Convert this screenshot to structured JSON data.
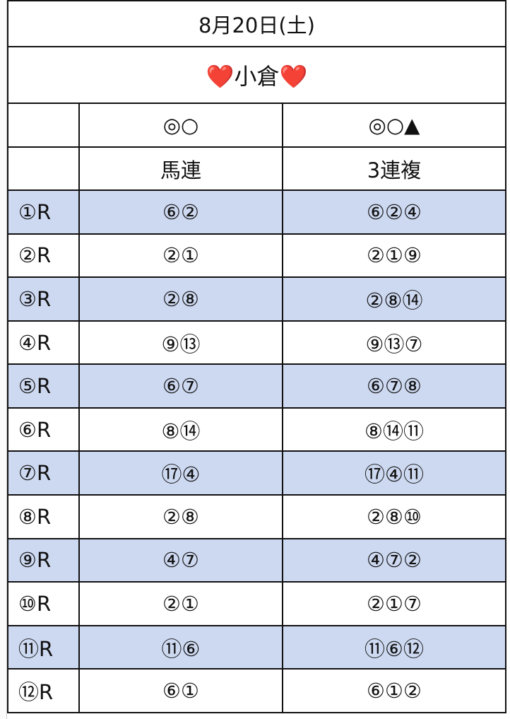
{
  "header": {
    "date": "8月20日(土)",
    "venue": "❤️小倉❤️"
  },
  "table": {
    "column_marks": [
      "◎○",
      "◎○▲"
    ],
    "column_names": [
      "馬連",
      "3連複"
    ],
    "rows": [
      [
        "①R",
        "⑥②",
        "⑥②④"
      ],
      [
        "②R",
        "②①",
        "②①⑨"
      ],
      [
        "③R",
        "②⑧",
        "②⑧⑭"
      ],
      [
        "④R",
        "⑨⑬",
        "⑨⑬⑦"
      ],
      [
        "⑤R",
        "⑥⑦",
        "⑥⑦⑧"
      ],
      [
        "⑥R",
        "⑧⑭",
        "⑧⑭⑪"
      ],
      [
        "⑦R",
        "⑰④",
        "⑰④⑪"
      ],
      [
        "⑧R",
        "②⑧",
        "②⑧⑩"
      ],
      [
        "⑨R",
        "④⑦",
        "④⑦②"
      ],
      [
        "⑩R",
        "②①",
        "②①⑦"
      ],
      [
        "⑪R",
        "⑪⑥",
        "⑪⑥⑫"
      ],
      [
        "⑫R",
        "⑥①",
        "⑥①②"
      ]
    ]
  }
}
